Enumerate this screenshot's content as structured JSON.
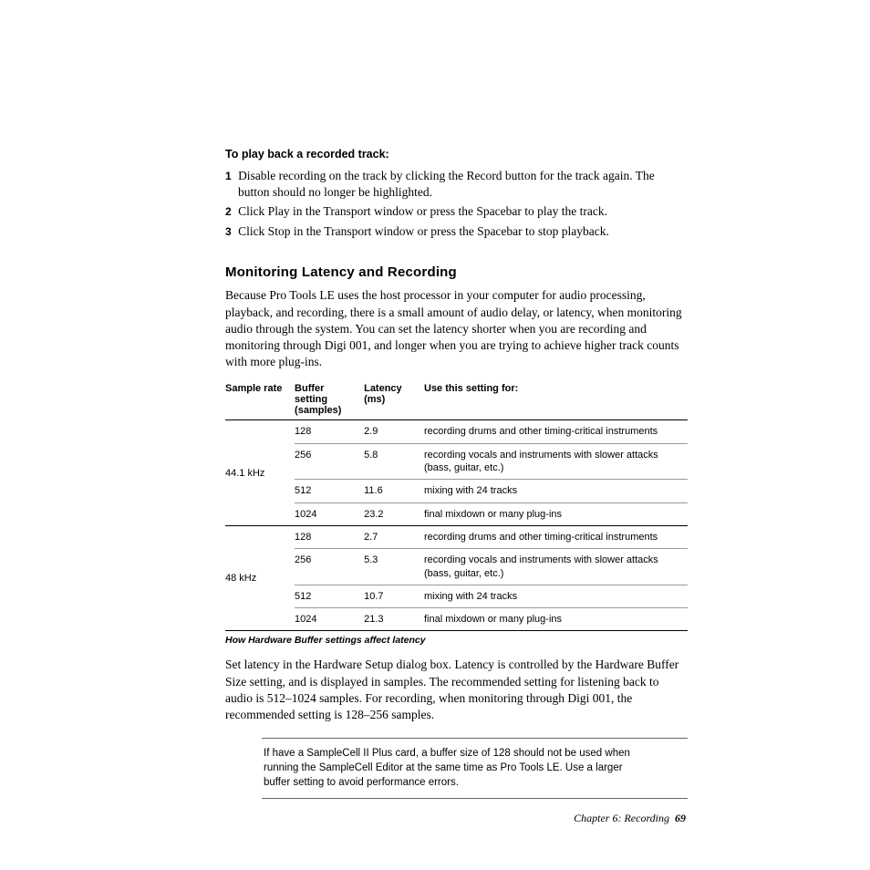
{
  "section1": {
    "heading": "To play back a recorded track:",
    "steps": [
      "Disable recording on the track by clicking the Record button for the track again. The button should no longer be highlighted.",
      "Click Play in the Transport window or press the Spacebar to play the track.",
      "Click Stop in the Transport window or press the Spacebar to stop playback."
    ]
  },
  "section2": {
    "heading": "Monitoring Latency and Recording",
    "intro": "Because Pro Tools LE uses the host processor in your computer for audio processing, playback, and recording, there is a small amount of audio delay, or latency, when monitoring audio through the system. You can set the latency shorter when you are recording and monitoring through Digi 001, and longer when you are trying to achieve higher track counts with more plug-ins."
  },
  "table": {
    "headers": [
      "Sample rate",
      "Buffer setting (samples)",
      "Latency (ms)",
      "Use this setting for:"
    ],
    "col_widths": [
      "15%",
      "15%",
      "13%",
      "57%"
    ],
    "caption": "How Hardware Buffer settings affect latency",
    "groups": [
      {
        "rate": "44.1 kHz",
        "rows": [
          {
            "buffer": "128",
            "latency": "2.9",
            "use": "recording drums and other timing-critical instruments"
          },
          {
            "buffer": "256",
            "latency": "5.8",
            "use": "recording vocals and instruments with slower attacks (bass, guitar, etc.)"
          },
          {
            "buffer": "512",
            "latency": "11.6",
            "use": "mixing with 24 tracks"
          },
          {
            "buffer": "1024",
            "latency": "23.2",
            "use": "final mixdown or many plug-ins"
          }
        ]
      },
      {
        "rate": "48 kHz",
        "rows": [
          {
            "buffer": "128",
            "latency": "2.7",
            "use": "recording drums and other timing-critical instruments"
          },
          {
            "buffer": "256",
            "latency": "5.3",
            "use": "recording vocals and instruments with slower attacks (bass, guitar, etc.)"
          },
          {
            "buffer": "512",
            "latency": "10.7",
            "use": "mixing with 24 tracks"
          },
          {
            "buffer": "1024",
            "latency": "21.3",
            "use": "final mixdown or many plug-ins"
          }
        ]
      }
    ]
  },
  "after_table": "Set latency in the Hardware Setup dialog box. Latency is controlled by the Hardware Buffer Size setting, and is displayed in samples. The recommended setting for listening back to audio is 512–1024 samples. For recording, when monitoring through Digi 001, the recommended setting is 128–256 samples.",
  "note": "If have a SampleCell II Plus card, a buffer size of 128 should not be used when running the SampleCell Editor at the same time as Pro Tools LE. Use a larger buffer setting to avoid performance errors.",
  "footer": {
    "chapter": "Chapter 6: Recording",
    "page": "69"
  }
}
